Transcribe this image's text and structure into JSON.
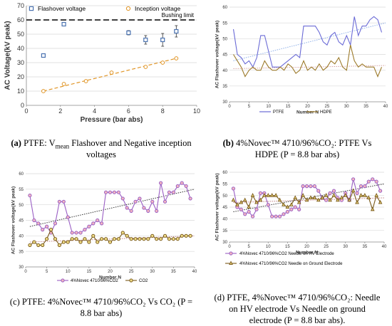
{
  "chart_data": [
    {
      "type": "scatter",
      "panel_id": "a",
      "xlabel": "Pressure (bar abs)",
      "ylabel": "AC Voltage(kV peak)",
      "xlim": [
        0,
        10
      ],
      "ylim": [
        0,
        70
      ],
      "xticks": [
        "0",
        "2",
        "4",
        "6",
        "8",
        "10"
      ],
      "yticks": [
        "0",
        "10",
        "20",
        "30",
        "40",
        "50",
        "60",
        "70"
      ],
      "grid": "horizontal",
      "legend": "top",
      "series": [
        {
          "name": "Flashover voltage",
          "color": "#4a72b0",
          "marker": "square",
          "x": [
            1,
            2.2,
            6,
            7,
            8,
            8.8
          ],
          "y": [
            35,
            57,
            51,
            46,
            46,
            52
          ],
          "err": [
            1,
            1,
            1.5,
            3,
            4.5,
            4
          ]
        },
        {
          "name": "Inception voltage",
          "color": "#e09526",
          "marker": "circle",
          "x": [
            1,
            2.2,
            3.5,
            5,
            7,
            8,
            8.8
          ],
          "y": [
            10,
            15,
            17,
            23,
            27,
            30,
            33
          ]
        }
      ],
      "reference_line": {
        "label": "Bushing limit",
        "y": 60
      },
      "trendline": {
        "series": "Inception voltage",
        "from": [
          1,
          10
        ],
        "to": [
          8.8,
          33
        ]
      }
    },
    {
      "type": "line",
      "panel_id": "b",
      "xlabel": "Number N",
      "ylabel": "AC Flashover voltage(kV peak)",
      "xlim": [
        0,
        40
      ],
      "ylim": [
        30,
        60
      ],
      "xticks": [
        "0",
        "5",
        "10",
        "15",
        "20",
        "25",
        "30",
        "35",
        "40"
      ],
      "yticks": [
        "30",
        "35",
        "40",
        "45",
        "50",
        "55",
        "60"
      ],
      "grid": "horizontal",
      "legend": "bottom",
      "series": [
        {
          "name": "PTFE",
          "color": "#6b6bd6",
          "marker": "none",
          "y": [
            53,
            45,
            44,
            42,
            43,
            41,
            44,
            51,
            51,
            46,
            41,
            41,
            41,
            42,
            43,
            44,
            45,
            44,
            54,
            54,
            54,
            54,
            52,
            49,
            48,
            51,
            52,
            49,
            48,
            51,
            48,
            57,
            51,
            54,
            54,
            56,
            57,
            56,
            52
          ]
        },
        {
          "name": "HDPE",
          "color": "#9c7a2a",
          "marker": "none",
          "y": [
            45,
            43,
            41,
            38,
            40,
            41,
            40,
            40,
            43,
            41,
            40,
            40,
            41,
            40,
            42,
            41,
            39,
            40,
            43,
            40,
            41,
            40,
            42,
            40,
            41,
            43,
            42,
            44,
            41,
            40,
            48,
            43,
            41,
            42,
            41,
            41,
            41,
            38,
            41
          ]
        }
      ],
      "trendlines": [
        {
          "series": "PTFE",
          "from": [
            1,
            43
          ],
          "to": [
            40,
            55
          ]
        },
        {
          "series": "HDPE",
          "from": [
            1,
            40.5
          ],
          "to": [
            40,
            41.5
          ]
        }
      ]
    },
    {
      "type": "line",
      "panel_id": "c",
      "xlabel": "Number N",
      "ylabel": "AC Flashover voltage(kV peak)",
      "xlim": [
        0,
        40
      ],
      "ylim": [
        30,
        60
      ],
      "xticks": [
        "0",
        "5",
        "10",
        "15",
        "20",
        "25",
        "30",
        "35",
        "40"
      ],
      "yticks": [
        "30",
        "35",
        "40",
        "45",
        "50",
        "55",
        "60"
      ],
      "grid": "horizontal",
      "legend": "bottom",
      "series": [
        {
          "name": "4%Novec 4710/96%CO2",
          "color": "#9a5fc4",
          "marker": "circle",
          "fill": "#f4b8c0",
          "y": [
            53,
            45,
            44,
            42,
            43,
            41,
            44,
            51,
            51,
            46,
            41,
            41,
            41,
            42,
            43,
            44,
            45,
            44,
            54,
            54,
            54,
            54,
            52,
            49,
            48,
            51,
            52,
            49,
            48,
            51,
            48,
            57,
            51,
            54,
            54,
            56,
            57,
            56,
            52
          ]
        },
        {
          "name": "CO2",
          "color": "#7a5a1a",
          "marker": "circle",
          "fill": "#f2e08a",
          "y": [
            37,
            38,
            37,
            37,
            39,
            42,
            39,
            37,
            38,
            38,
            39,
            39,
            38,
            39,
            38,
            40,
            38,
            39,
            39,
            38,
            39,
            39,
            41,
            40,
            39,
            39,
            39,
            39,
            39,
            40,
            39,
            39,
            40,
            39,
            39,
            39,
            40,
            40,
            40
          ]
        }
      ],
      "trendlines": [
        {
          "series": "4%Novec 4710/96%CO2",
          "from": [
            1,
            43
          ],
          "to": [
            40,
            55
          ]
        },
        {
          "series": "CO2",
          "from": [
            1,
            38
          ],
          "to": [
            40,
            40
          ]
        }
      ]
    },
    {
      "type": "line",
      "panel_id": "d",
      "xlabel": "Number N",
      "ylabel": "AC Flashover voltage(kV peak)",
      "xlim": [
        0,
        40
      ],
      "ylim": [
        30,
        60
      ],
      "xticks": [
        "0",
        "5",
        "10",
        "15",
        "20",
        "25",
        "30",
        "35",
        "40"
      ],
      "yticks": [
        "30",
        "35",
        "40",
        "45",
        "50",
        "55",
        "60"
      ],
      "grid": "horizontal",
      "legend": "bottom",
      "series": [
        {
          "name": "4%Novec 4710/96%CO2 Needle on HV Electrode",
          "color": "#9a5fc4",
          "marker": "circle",
          "fill": "#f4b8c0",
          "y": [
            53,
            45,
            44,
            42,
            43,
            41,
            44,
            51,
            51,
            46,
            41,
            41,
            41,
            42,
            43,
            44,
            45,
            44,
            54,
            54,
            54,
            54,
            52,
            49,
            48,
            51,
            52,
            49,
            48,
            51,
            48,
            57,
            51,
            54,
            54,
            56,
            57,
            56,
            52
          ]
        },
        {
          "name": "4%Novec 4710/96%CO2 Needle on Ground Electrode",
          "color": "#7a5a1a",
          "marker": "triangle",
          "fill": "#e6d27a",
          "y": [
            48,
            46,
            47,
            48,
            45,
            50,
            47,
            48,
            50,
            50,
            50,
            50,
            48,
            46,
            45,
            46,
            49,
            47,
            50,
            48,
            49,
            49,
            48,
            49,
            50,
            48,
            50,
            48,
            49,
            50,
            48,
            52,
            47,
            50,
            50,
            49,
            44,
            50,
            47
          ]
        }
      ],
      "trendlines": [
        {
          "series": "4%Novec 4710/96%CO2 Needle on HV Electrode",
          "from": [
            1,
            43
          ],
          "to": [
            40,
            55
          ]
        },
        {
          "series": "4%Novec 4710/96%CO2 Needle on Ground Electrode",
          "from": [
            1,
            47
          ],
          "to": [
            40,
            49
          ]
        }
      ]
    }
  ],
  "captions": {
    "a": {
      "tag": "(a)",
      "pre": " PTFE: V",
      "sub": "mean",
      "post": " Flashover and Negative inception",
      "line2": "voltages"
    },
    "b": {
      "tag": "(b)",
      "line1": " 4%Novec™ 4710/96%CO₂: PTFE Vs",
      "line2": "HDPE (P = 8.8 bar abs)"
    },
    "c": {
      "line1": "(c) PTFE: 4%Novec™ 4710/96%CO₂ Vs CO₂ (P =",
      "line2": "8.8 bar abs)"
    },
    "d": {
      "line1": "(d) PTFE, 4%Novec™ 4710/96%CO₂: Needle",
      "line2": "on HV electrode Vs Needle on ground",
      "line3": "electrode (P = 8.8 bar abs)."
    }
  }
}
